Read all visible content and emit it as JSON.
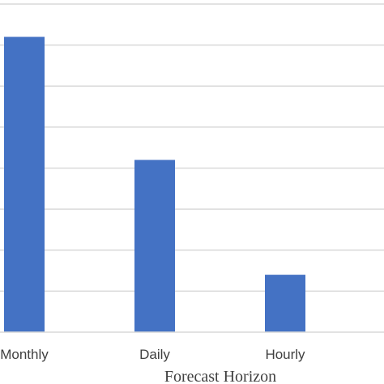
{
  "chart_data": {
    "type": "bar",
    "categories": [
      "Monthly",
      "Daily",
      "Hourly"
    ],
    "values": [
      7.2,
      4.2,
      1.4
    ],
    "title": "",
    "xlabel": "Forecast Horizon",
    "ylabel": "",
    "ylim": [
      0,
      8
    ],
    "grid": true,
    "bar_color": "#4472C4",
    "grid_color": "#d9d9d9"
  }
}
